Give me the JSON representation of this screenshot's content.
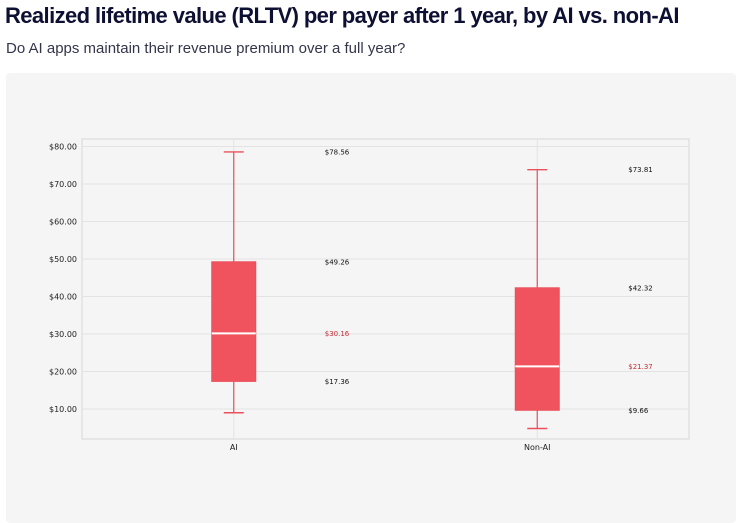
{
  "header": {
    "title": "Realized lifetime value (RLTV) per payer after 1 year, by AI vs. non-AI",
    "subtitle": "Do AI apps maintain their revenue premium over a full year?"
  },
  "colors": {
    "box": "#f0535e",
    "whisker": "#e9505c",
    "median_line": "#ffffff",
    "median_label": "#c0303a",
    "grid": "#e3e3e3",
    "plot_bg": "#f5f5f5",
    "frame": "#d8d8d8"
  },
  "chart_data": {
    "type": "box",
    "title": "",
    "xlabel": "",
    "ylabel": "",
    "ylim": [
      2,
      82
    ],
    "yticks": [
      10,
      20,
      30,
      40,
      50,
      60,
      70,
      80
    ],
    "ytick_labels": [
      "$10.00",
      "$20.00",
      "$30.00",
      "$40.00",
      "$50.00",
      "$60.00",
      "$70.00",
      "$80.00"
    ],
    "grid": true,
    "categories": [
      "AI",
      "Non-AI"
    ],
    "boxes": [
      {
        "name": "AI",
        "whisker_low": 9.0,
        "q1": 17.36,
        "median": 30.16,
        "q3": 49.26,
        "whisker_high": 78.56,
        "labels": {
          "upper": "$78.56",
          "q3": "$49.26",
          "median": "$30.16",
          "q1": "$17.36"
        }
      },
      {
        "name": "Non-AI",
        "whisker_low": 4.8,
        "q1": 9.66,
        "median": 21.37,
        "q3": 42.32,
        "whisker_high": 73.81,
        "labels": {
          "upper": "$73.81",
          "q3": "$42.32",
          "median": "$21.37",
          "q1": "$9.66"
        }
      }
    ]
  }
}
